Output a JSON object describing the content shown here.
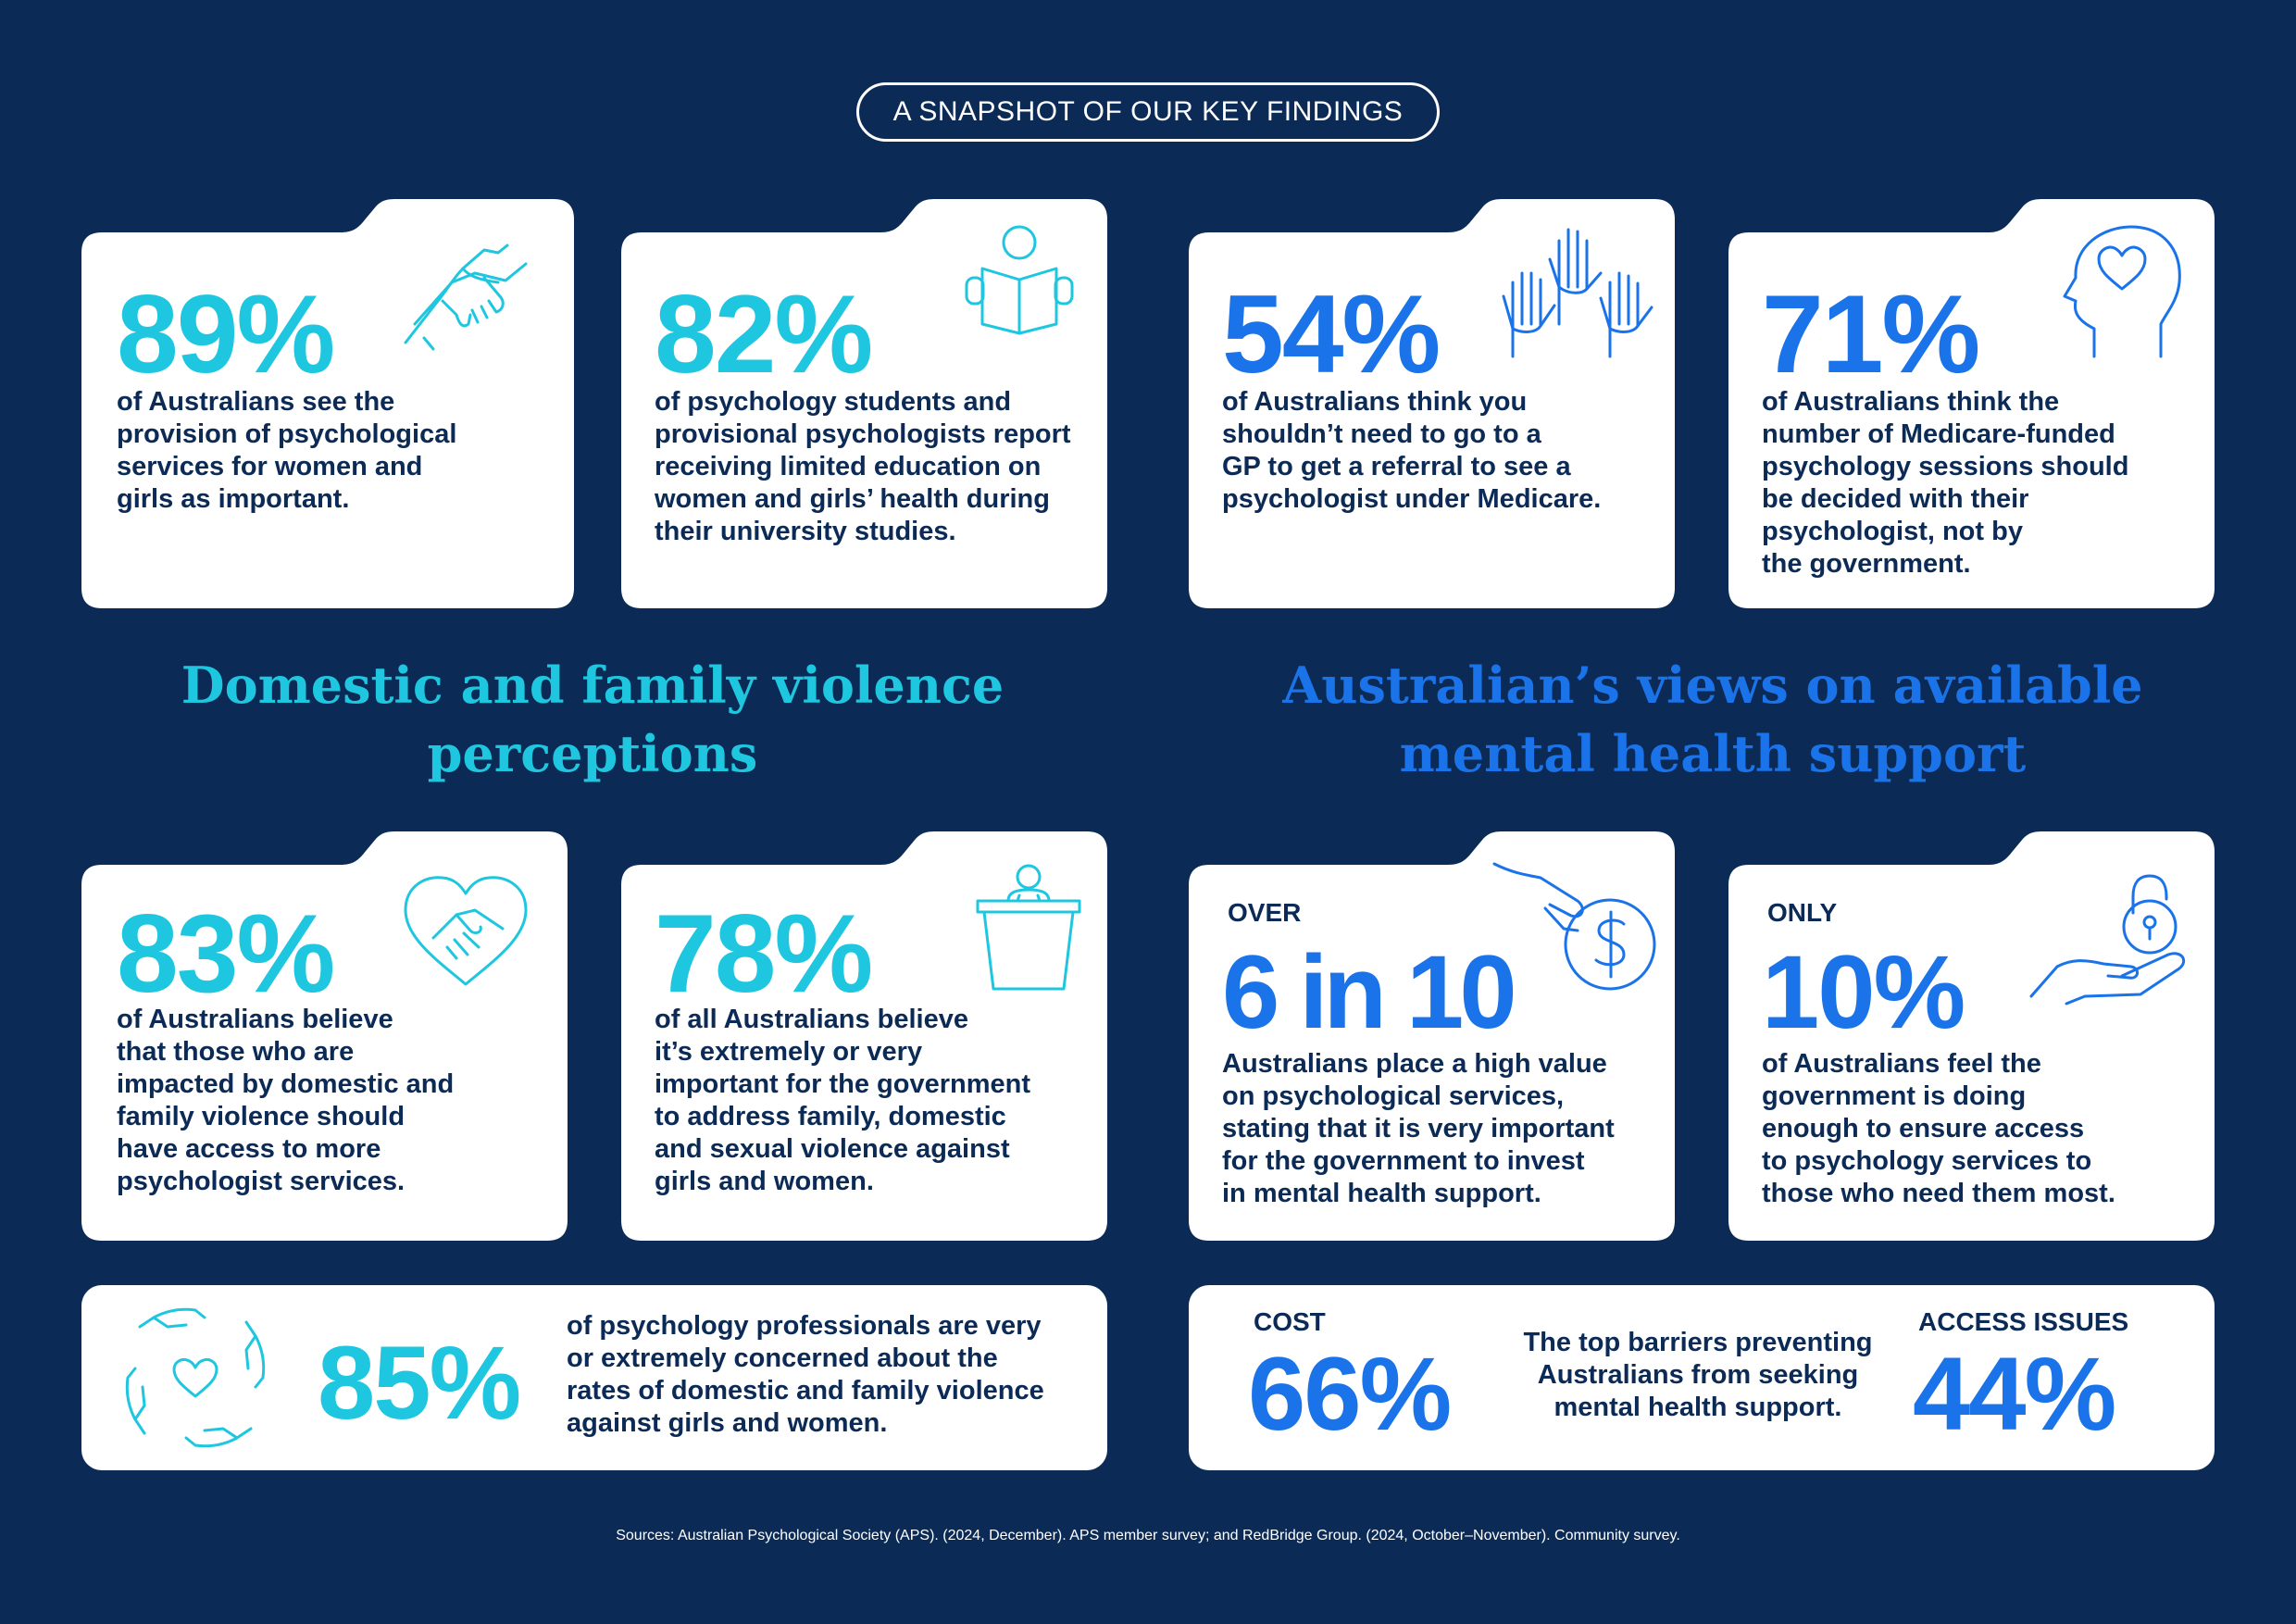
{
  "header": {
    "title": "A SNAPSHOT OF OUR KEY FINDINGS"
  },
  "colors": {
    "background": "#0b2a55",
    "teal": "#1ec7df",
    "blue": "#1a73e8",
    "text": "#0b2a55",
    "card": "#ffffff"
  },
  "cards": {
    "c89": {
      "value": "89%",
      "text": "of Australians see the\nprovision of psychological\nservices for women and\ngirls as important.",
      "icon": "handshake-icon"
    },
    "c82": {
      "value": "82%",
      "text": "of psychology students and\nprovisional psychologists report\nreceiving limited education on\nwomen and girls’ health during\ntheir university studies.",
      "icon": "reading-person-icon"
    },
    "c54": {
      "value": "54%",
      "text": "of Australians think you\nshouldn’t need to go to a\nGP to get a referral to see a\npsychologist under Medicare.",
      "icon": "raised-hands-icon"
    },
    "c71": {
      "value": "71%",
      "text": "of Australians think the\nnumber of Medicare-funded\npsychology sessions should\nbe decided with their\npsychologist, not by\nthe government.",
      "icon": "head-heart-icon"
    },
    "c83": {
      "value": "83%",
      "text": "of Australians believe\nthat those who are\nimpacted by domestic and\nfamily violence should\nhave access to more\npsychologist services.",
      "icon": "heart-handshake-icon"
    },
    "c78": {
      "value": "78%",
      "text": "of all Australians believe\nit’s extremely or very\nimportant for the government\nto address family, domestic\nand sexual violence against\ngirls and women.",
      "icon": "podium-speaker-icon"
    },
    "c6in10": {
      "prefix": "OVER",
      "value": "6 in 10",
      "text": "Australians place a high value\non psychological services,\nstating that it is very important\nfor the government to invest\nin mental health support.",
      "icon": "hand-coin-icon"
    },
    "c10": {
      "prefix": "ONLY",
      "value": "10%",
      "text": "of Australians feel the\ngovernment is doing\nenough to ensure access\nto psychology services to\nthose who need them most.",
      "icon": "hand-lock-icon"
    },
    "c85": {
      "value": "85%",
      "text": "of psychology professionals are very\nor extremely concerned about the\nrates of domestic and family violence\nagainst girls and women.",
      "icon": "hands-heart-circle-icon"
    },
    "barriers": {
      "cost_label": "COST",
      "cost_value": "66%",
      "middle_text": "The top barriers preventing\nAustralians from seeking\nmental health support.",
      "access_label": "ACCESS ISSUES",
      "access_value": "44%"
    }
  },
  "headings": {
    "left": "Domestic and family violence\nperceptions",
    "right": "Australian’s views on available\nmental health support"
  },
  "sources": "Sources: Australian Psychological Society (APS). (2024, December). APS member survey; and RedBridge Group. (2024, October–November). Community survey."
}
